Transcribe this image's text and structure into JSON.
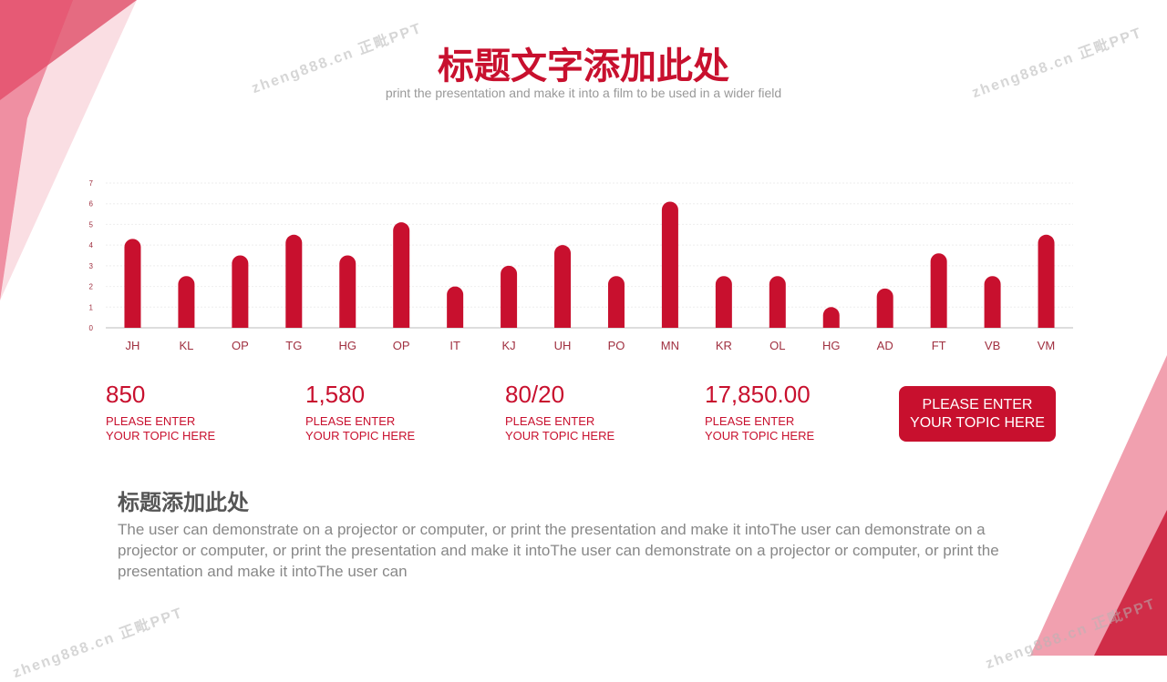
{
  "header": {
    "title": "标题文字添加此处",
    "subtitle": "print the presentation and make it into a film to be used in a wider field"
  },
  "colors": {
    "accent": "#c8102e",
    "text_gray": "#888888"
  },
  "chart_data": {
    "type": "bar",
    "categories": [
      "JH",
      "KL",
      "OP",
      "TG",
      "HG",
      "OP",
      "IT",
      "KJ",
      "UH",
      "PO",
      "MN",
      "KR",
      "OL",
      "HG",
      "AD",
      "FT",
      "VB",
      "VM"
    ],
    "values": [
      4.3,
      2.5,
      3.5,
      4.5,
      3.5,
      5.1,
      2.0,
      3.0,
      4.0,
      2.5,
      6.1,
      2.5,
      2.5,
      1.0,
      1.9,
      3.6,
      2.5,
      4.5
    ],
    "yticks": [
      "0",
      "1",
      "2",
      "3",
      "4",
      "5",
      "6",
      "7"
    ],
    "ylim": [
      0,
      7
    ],
    "grid": true,
    "color": "#c8102e"
  },
  "stats": [
    {
      "value": "850",
      "label1": "PLEASE ENTER",
      "label2": "YOUR TOPIC HERE"
    },
    {
      "value": "1,580",
      "label1": "PLEASE ENTER",
      "label2": "YOUR TOPIC HERE"
    },
    {
      "value": "80/20",
      "label1": "PLEASE ENTER",
      "label2": "YOUR TOPIC HERE"
    },
    {
      "value": "17,850.00",
      "label1": "PLEASE ENTER",
      "label2": "YOUR TOPIC HERE"
    }
  ],
  "button": {
    "line1": "PLEASE ENTER",
    "line2": "YOUR TOPIC HERE"
  },
  "section": {
    "title": "标题添加此处",
    "body": "The user can demonstrate on a projector or computer, or print the presentation and make it intoThe user can demonstrate on a projector or computer, or print the presentation and make it intoThe user can demonstrate on a projector or computer, or print the presentation and make it intoThe user can"
  },
  "watermark": "zheng888.cn 正毗PPT"
}
